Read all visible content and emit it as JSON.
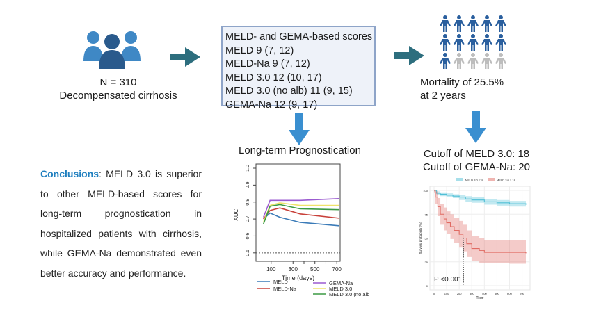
{
  "cohort": {
    "n": "N = 310",
    "label": "Decompensated cirrhosis"
  },
  "scores": {
    "lines": [
      "MELD- and GEMA-based scores",
      "MELD 9 (7, 12)",
      "MELD-Na 9 (7, 12)",
      "MELD 3.0 12 (10, 17)",
      "MELD 3.0 (no alb) 11 (9, 15)",
      "GEMA-Na 12 (9, 17)"
    ]
  },
  "mortality": {
    "line1": "Mortality of 25.5%",
    "line2": "at 2 years",
    "pictogram": {
      "total": 15,
      "highlighted": 11
    }
  },
  "cutoffs": {
    "meld3": "Cutoff of MELD 3.0: 18",
    "gema": "Cutoff of GEMA-Na: 20"
  },
  "conclusion": {
    "label": "Conclusions",
    "text": ": MELD 3.0 is superior to other MELD-based scores for long-term prognostication in hospitalized patients with cirrhosis, while GEMA-Na demonstrated even better accuracy and performance."
  },
  "colors": {
    "arrow_right": "#2d6e7e",
    "arrow_down": "#3a8fd0",
    "people": "#2a5f9e",
    "people_gray": "#bdbdbd",
    "accent": "#1f7fbf"
  },
  "chart_data": [
    {
      "type": "line",
      "title": "Long-term Prognostication",
      "xlabel": "Time (days)",
      "ylabel": "AUC",
      "xlim": [
        0,
        730
      ],
      "ylim": [
        0.45,
        1.0
      ],
      "xticks": [
        100,
        300,
        500,
        700
      ],
      "yticks": [
        0.5,
        0.6,
        0.7,
        0.8,
        0.9,
        1.0
      ],
      "reference_line": 0.5,
      "x": [
        30,
        90,
        180,
        365,
        720
      ],
      "series": [
        {
          "name": "MELD",
          "color": "#3b7bb8",
          "values": [
            0.7,
            0.735,
            0.71,
            0.68,
            0.66
          ]
        },
        {
          "name": "MELD-Na",
          "color": "#c8413a",
          "values": [
            0.7,
            0.75,
            0.765,
            0.73,
            0.705
          ]
        },
        {
          "name": "GEMA-Na",
          "color": "#9b5bd0",
          "values": [
            0.71,
            0.81,
            0.81,
            0.81,
            0.82
          ]
        },
        {
          "name": "MELD 3.0",
          "color": "#efe36a",
          "values": [
            0.68,
            0.78,
            0.795,
            0.78,
            0.78
          ]
        },
        {
          "name": "MELD 3.0 (no alb)",
          "color": "#3c9a44",
          "values": [
            0.67,
            0.775,
            0.785,
            0.76,
            0.755
          ]
        }
      ],
      "legend": "bottom"
    },
    {
      "type": "line",
      "xlabel": "Time",
      "ylabel": "Survival probability (%)",
      "xlim": [
        0,
        730
      ],
      "ylim": [
        0,
        100
      ],
      "xticks": [
        0,
        100,
        200,
        300,
        400,
        500,
        600,
        700
      ],
      "yticks": [
        0,
        25,
        50,
        75,
        100
      ],
      "annotation": "P <0.001",
      "median_line": {
        "x": 235,
        "y": 50
      },
      "legend": "top",
      "series": [
        {
          "name": "MELD 3.0 ≤18",
          "color": "#4fbfd6",
          "x": [
            0,
            20,
            50,
            100,
            150,
            200,
            250,
            300,
            400,
            500,
            600,
            730
          ],
          "values": [
            100,
            97,
            96,
            95,
            94,
            93,
            91,
            90,
            88,
            87,
            86,
            85
          ],
          "lower": [
            99,
            95,
            94,
            93,
            92,
            90,
            88,
            87,
            85,
            84,
            83,
            82
          ],
          "upper": [
            100,
            99,
            98,
            97,
            96,
            95,
            94,
            93,
            91,
            90,
            89,
            88
          ]
        },
        {
          "name": "MELD 3.0 > 18",
          "color": "#e06b63",
          "x": [
            0,
            10,
            30,
            50,
            80,
            100,
            130,
            160,
            200,
            230,
            260,
            300,
            360,
            400,
            600,
            730
          ],
          "values": [
            100,
            93,
            83,
            75,
            70,
            66,
            62,
            58,
            54,
            50,
            44,
            39,
            37,
            35,
            35,
            34
          ],
          "lower": [
            98,
            86,
            73,
            64,
            58,
            54,
            49,
            45,
            40,
            36,
            30,
            26,
            24,
            24,
            23,
            23
          ],
          "upper": [
            100,
            99,
            92,
            86,
            82,
            78,
            75,
            71,
            68,
            64,
            58,
            52,
            50,
            48,
            48,
            47
          ]
        }
      ]
    }
  ]
}
